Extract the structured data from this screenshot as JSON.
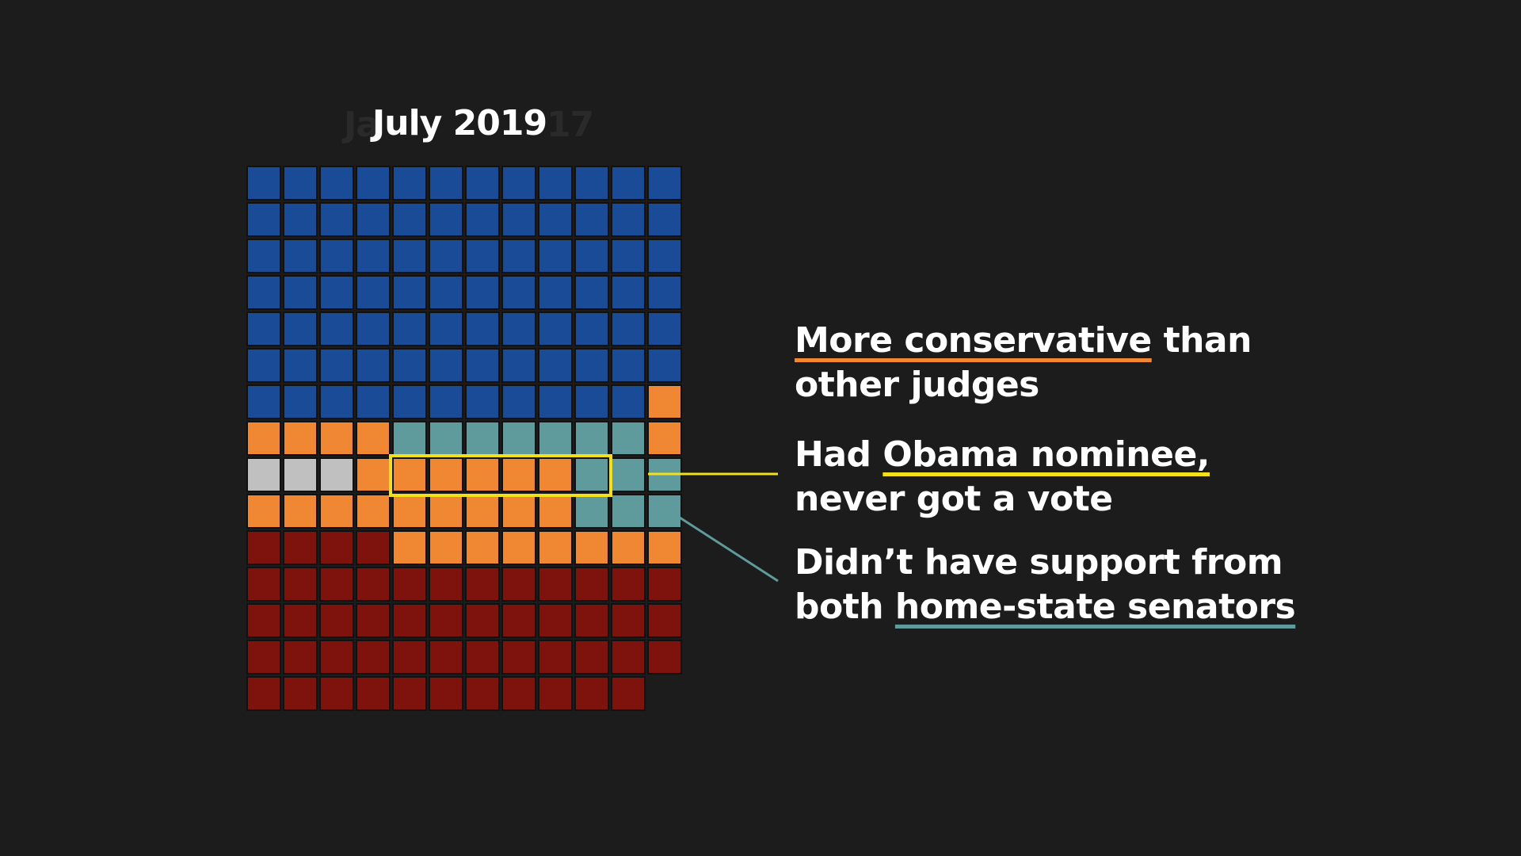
{
  "title": "July 2019",
  "ghost_title_left": "Ja",
  "ghost_title_right": "17",
  "colors": {
    "background": "#1c1c1c",
    "blue": "#1a4b96",
    "orange": "#ef8733",
    "teal": "#5f9b9c",
    "gray": "#c0c0c0",
    "darkred": "#7e120c",
    "highlight": "#f2e11a"
  },
  "annotations": {
    "a1_line1_u": "More conservative",
    "a1_line1_rest": " than",
    "a1_line2": "other judges",
    "a2_line1_pre": "Had ",
    "a2_line1_u": "Obama nominee,",
    "a2_line2": "never got a vote",
    "a3_line1": "Didn’t have support from",
    "a3_line2_pre": "both ",
    "a3_line2_u": "home-state senators"
  },
  "chart_data": {
    "type": "waffle",
    "columns": 12,
    "rows": [
      [
        "blue",
        "blue",
        "blue",
        "blue",
        "blue",
        "blue",
        "blue",
        "blue",
        "blue",
        "blue",
        "blue",
        "blue"
      ],
      [
        "blue",
        "blue",
        "blue",
        "blue",
        "blue",
        "blue",
        "blue",
        "blue",
        "blue",
        "blue",
        "blue",
        "blue"
      ],
      [
        "blue",
        "blue",
        "blue",
        "blue",
        "blue",
        "blue",
        "blue",
        "blue",
        "blue",
        "blue",
        "blue",
        "blue"
      ],
      [
        "blue",
        "blue",
        "blue",
        "blue",
        "blue",
        "blue",
        "blue",
        "blue",
        "blue",
        "blue",
        "blue",
        "blue"
      ],
      [
        "blue",
        "blue",
        "blue",
        "blue",
        "blue",
        "blue",
        "blue",
        "blue",
        "blue",
        "blue",
        "blue",
        "blue"
      ],
      [
        "blue",
        "blue",
        "blue",
        "blue",
        "blue",
        "blue",
        "blue",
        "blue",
        "blue",
        "blue",
        "blue",
        "blue"
      ],
      [
        "blue",
        "blue",
        "blue",
        "blue",
        "blue",
        "blue",
        "blue",
        "blue",
        "blue",
        "blue",
        "blue",
        "orange"
      ],
      [
        "orange",
        "orange",
        "orange",
        "orange",
        "teal",
        "teal",
        "teal",
        "teal",
        "teal",
        "teal",
        "teal",
        "orange"
      ],
      [
        "gray",
        "gray",
        "gray",
        "orange",
        "orange",
        "orange",
        "orange",
        "orange",
        "orange",
        "teal",
        "teal",
        "teal"
      ],
      [
        "orange",
        "orange",
        "orange",
        "orange",
        "orange",
        "orange",
        "orange",
        "orange",
        "orange",
        "teal",
        "teal",
        "teal"
      ],
      [
        "darkred",
        "darkred",
        "darkred",
        "darkred",
        "orange",
        "orange",
        "orange",
        "orange",
        "orange",
        "orange",
        "orange",
        "orange"
      ],
      [
        "darkred",
        "darkred",
        "darkred",
        "darkred",
        "darkred",
        "darkred",
        "darkred",
        "darkred",
        "darkred",
        "darkred",
        "darkred",
        "darkred"
      ],
      [
        "darkred",
        "darkred",
        "darkred",
        "darkred",
        "darkred",
        "darkred",
        "darkred",
        "darkred",
        "darkred",
        "darkred",
        "darkred",
        "darkred"
      ],
      [
        "darkred",
        "darkred",
        "darkred",
        "darkred",
        "darkred",
        "darkred",
        "darkred",
        "darkred",
        "darkred",
        "darkred",
        "darkred",
        "darkred"
      ],
      [
        "darkred",
        "darkred",
        "darkred",
        "darkred",
        "darkred",
        "darkred",
        "darkred",
        "darkred",
        "darkred",
        "darkred",
        "darkred"
      ]
    ],
    "highlight": {
      "row": 8,
      "col_start": 4,
      "col_end": 9
    }
  }
}
